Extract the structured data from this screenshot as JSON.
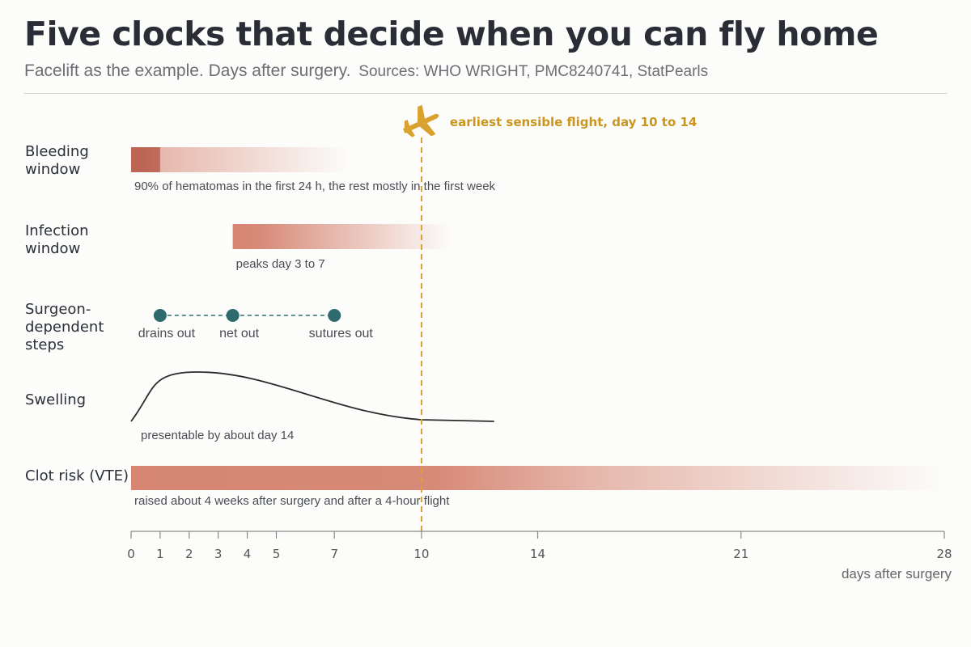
{
  "title": "Five clocks that decide when you can fly home",
  "subtitle": "Facelift as the example. Days after surgery.",
  "sources": "Sources: WHO WRIGHT, PMC8240741, StatPearls",
  "colors": {
    "bar": "#d4806c",
    "bar_dark": "#b85f4f",
    "milestone": "#2f6b6e",
    "flight": "#d9a22e",
    "curve": "#2b2b2b",
    "axis": "#888888"
  },
  "chart_data": {
    "type": "timeline",
    "xlabel": "days after surgery",
    "xlim": [
      0,
      28
    ],
    "ticks": [
      0,
      1,
      2,
      3,
      4,
      5,
      7,
      10,
      14,
      21,
      28
    ],
    "flight": {
      "day": 10,
      "label": "earliest sensible flight, day 10 to 14",
      "icon": "airplane-icon"
    },
    "rows": [
      {
        "id": "bleeding",
        "label": [
          "Bleeding",
          "window"
        ],
        "type": "bar",
        "start": 0,
        "end": 7.5,
        "solid_end": 0.4,
        "fade_start": 1,
        "highlight": [
          0,
          1
        ],
        "note": "90% of hematomas in the first 24 h, the rest mostly in the first week"
      },
      {
        "id": "infection",
        "label": [
          "Infection",
          "window"
        ],
        "type": "bar",
        "start": 3.5,
        "end": 11,
        "solid_end": 4.4,
        "fade_start": 7,
        "note": "peaks day 3 to 7"
      },
      {
        "id": "surgeon",
        "label": [
          "Surgeon-",
          "dependent",
          "steps"
        ],
        "type": "milestones",
        "points": [
          {
            "day": 1,
            "label": "drains out"
          },
          {
            "day": 3.5,
            "label": "net out"
          },
          {
            "day": 7,
            "label": "sutures out"
          }
        ]
      },
      {
        "id": "swelling",
        "label": [
          "Swelling"
        ],
        "type": "curve",
        "peak_day": 2.3,
        "end_day": 12.5,
        "note": "presentable by about day 14"
      },
      {
        "id": "vte",
        "label": [
          "Clot risk (VTE)"
        ],
        "type": "bar",
        "start": 0,
        "end": 28,
        "solid_end": 10.5,
        "fade_start": 16,
        "note": "raised about 4 weeks after surgery and after a 4-hour flight"
      }
    ]
  }
}
